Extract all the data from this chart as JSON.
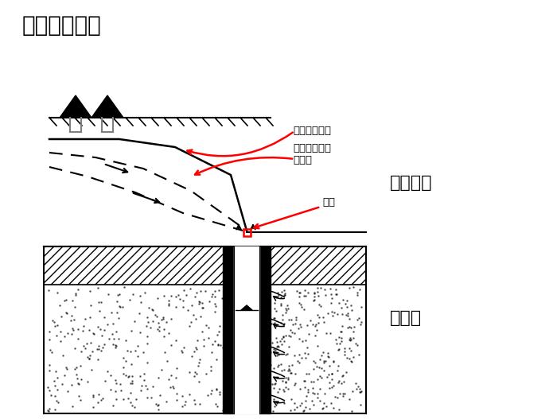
{
  "title": "二、研究意义",
  "label_jikeng": "基坑降水",
  "label_well": "抽水井",
  "label_original_water": "原地下水位线",
  "label_lowered_water": "降水后地下水\n水位线",
  "label_pump": "抽水",
  "bg_color": "#ffffff"
}
